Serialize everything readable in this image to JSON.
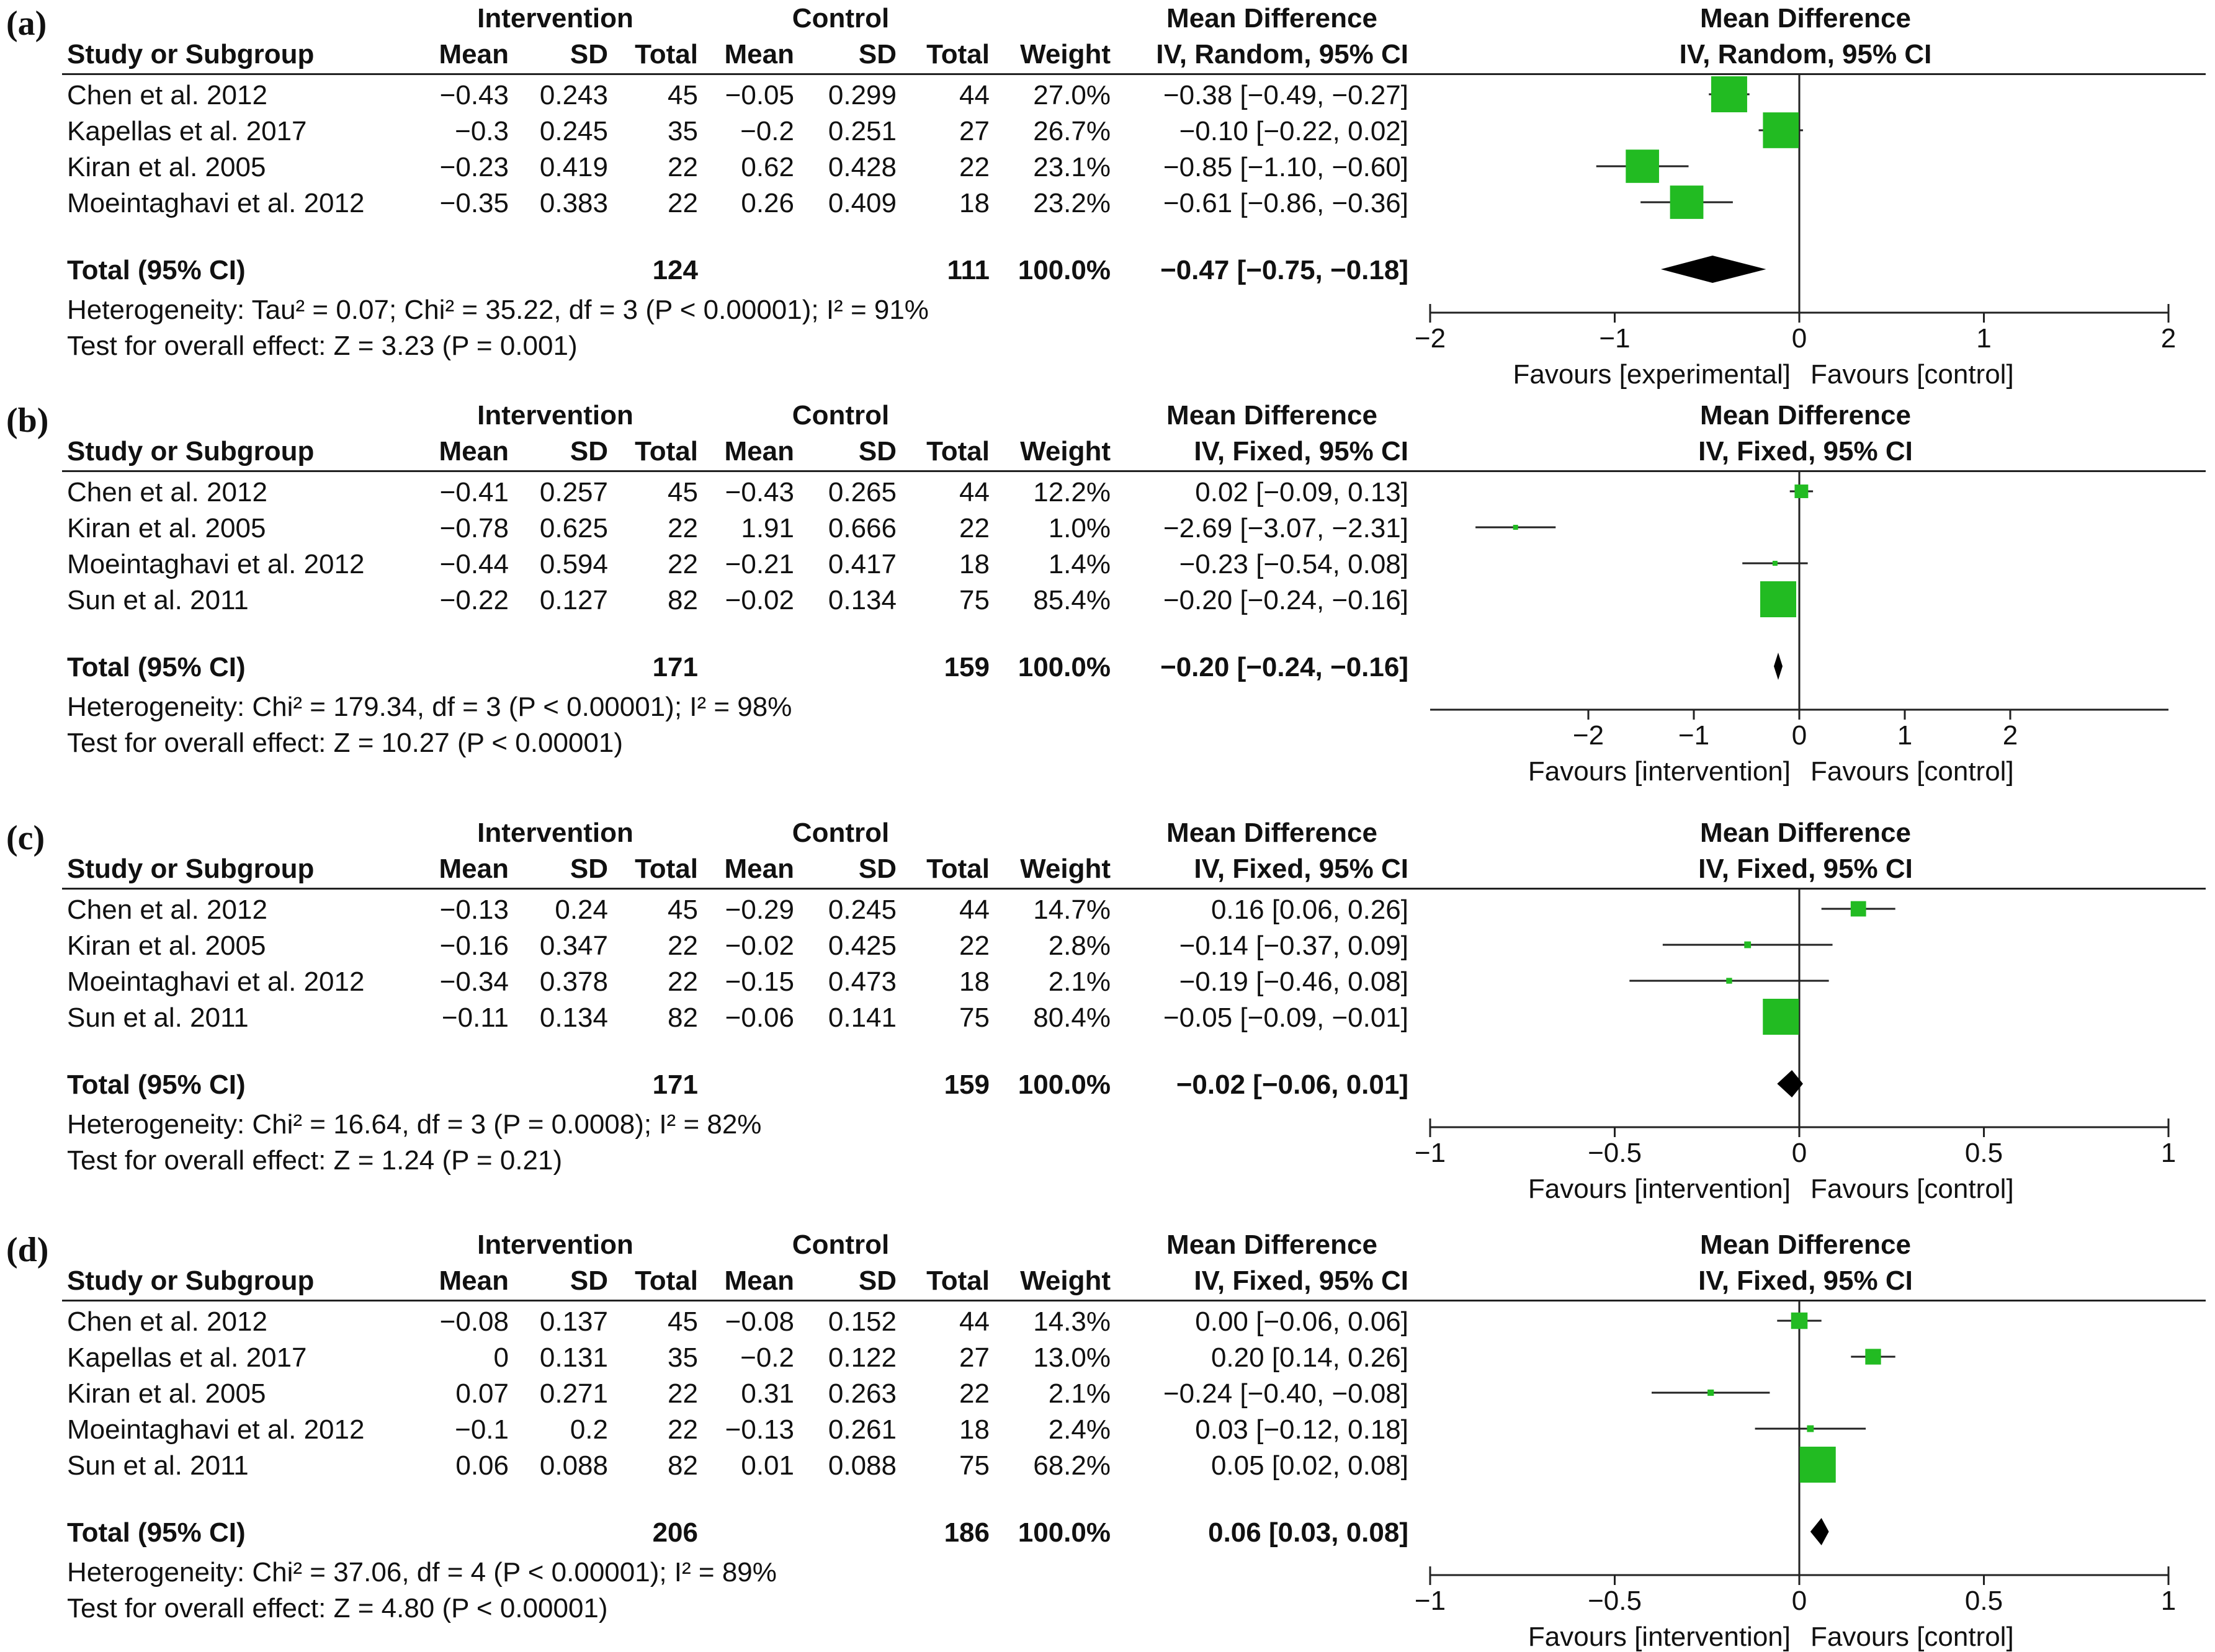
{
  "headers": {
    "study": "Study or Subgroup",
    "intervention": "Intervention",
    "control": "Control",
    "mean": "Mean",
    "sd": "SD",
    "total": "Total",
    "weight": "Weight",
    "md": "Mean Difference",
    "total_ci": "Total (95% CI)"
  },
  "colors": {
    "study_square": "#22bb22",
    "diamond": "#000000",
    "lines": "#222222"
  },
  "chart_data": [
    {
      "type": "forest",
      "panel_label": "(a)",
      "method": "IV, Random, 95% CI",
      "xlim": [
        -2,
        2
      ],
      "ticks": [
        "−2",
        "−1",
        "0",
        "1",
        "2"
      ],
      "tick_values": [
        -2,
        -1,
        0,
        1,
        2
      ],
      "favours_left": "Favours [experimental]",
      "favours_right": "Favours [control]",
      "studies": [
        {
          "name": "Chen et al. 2012",
          "i_mean": "−0.43",
          "i_sd": "0.243",
          "i_total": "45",
          "c_mean": "−0.05",
          "c_sd": "0.299",
          "c_total": "44",
          "weight": "27.0%",
          "ci_text": "−0.38 [−0.49, −0.27]",
          "md": -0.38,
          "lo": -0.49,
          "hi": -0.27,
          "w": 27.0
        },
        {
          "name": "Kapellas et al. 2017",
          "i_mean": "−0.3",
          "i_sd": "0.245",
          "i_total": "35",
          "c_mean": "−0.2",
          "c_sd": "0.251",
          "c_total": "27",
          "weight": "26.7%",
          "ci_text": "−0.10 [−0.22, 0.02]",
          "md": -0.1,
          "lo": -0.22,
          "hi": 0.02,
          "w": 26.7
        },
        {
          "name": "Kiran et al. 2005",
          "i_mean": "−0.23",
          "i_sd": "0.419",
          "i_total": "22",
          "c_mean": "0.62",
          "c_sd": "0.428",
          "c_total": "22",
          "weight": "23.1%",
          "ci_text": "−0.85 [−1.10, −0.60]",
          "md": -0.85,
          "lo": -1.1,
          "hi": -0.6,
          "w": 23.1
        },
        {
          "name": "Moeintaghavi et al. 2012",
          "i_mean": "−0.35",
          "i_sd": "0.383",
          "i_total": "22",
          "c_mean": "0.26",
          "c_sd": "0.409",
          "c_total": "18",
          "weight": "23.2%",
          "ci_text": "−0.61 [−0.86, −0.36]",
          "md": -0.61,
          "lo": -0.86,
          "hi": -0.36,
          "w": 23.2
        }
      ],
      "total": {
        "i_total": "124",
        "c_total": "111",
        "weight": "100.0%",
        "ci_text": "−0.47 [−0.75, −0.18]",
        "md": -0.47,
        "lo": -0.75,
        "hi": -0.18
      },
      "heterogeneity": "Heterogeneity: Tau² = 0.07; Chi² = 35.22, df = 3 (P < 0.00001); I² = 91%",
      "overall": "Test for overall effect: Z = 3.23 (P = 0.001)"
    },
    {
      "type": "forest",
      "panel_label": "(b)",
      "method": "IV, Fixed, 95% CI",
      "xlim": [
        -3.5,
        3.5
      ],
      "ticks": [
        "−2",
        "−1",
        "0",
        "1",
        "2"
      ],
      "tick_values": [
        -2,
        -1,
        0,
        1,
        2
      ],
      "favours_left": "Favours [intervention]",
      "favours_right": "Favours [control]",
      "studies": [
        {
          "name": "Chen et al. 2012",
          "i_mean": "−0.41",
          "i_sd": "0.257",
          "i_total": "45",
          "c_mean": "−0.43",
          "c_sd": "0.265",
          "c_total": "44",
          "weight": "12.2%",
          "ci_text": "0.02 [−0.09, 0.13]",
          "md": 0.02,
          "lo": -0.09,
          "hi": 0.13,
          "w": 12.2
        },
        {
          "name": "Kiran et al. 2005",
          "i_mean": "−0.78",
          "i_sd": "0.625",
          "i_total": "22",
          "c_mean": "1.91",
          "c_sd": "0.666",
          "c_total": "22",
          "weight": "1.0%",
          "ci_text": "−2.69 [−3.07, −2.31]",
          "md": -2.69,
          "lo": -3.07,
          "hi": -2.31,
          "w": 1.0
        },
        {
          "name": "Moeintaghavi et al. 2012",
          "i_mean": "−0.44",
          "i_sd": "0.594",
          "i_total": "22",
          "c_mean": "−0.21",
          "c_sd": "0.417",
          "c_total": "18",
          "weight": "1.4%",
          "ci_text": "−0.23 [−0.54, 0.08]",
          "md": -0.23,
          "lo": -0.54,
          "hi": 0.08,
          "w": 1.4
        },
        {
          "name": "Sun et al. 2011",
          "i_mean": "−0.22",
          "i_sd": "0.127",
          "i_total": "82",
          "c_mean": "−0.02",
          "c_sd": "0.134",
          "c_total": "75",
          "weight": "85.4%",
          "ci_text": "−0.20 [−0.24, −0.16]",
          "md": -0.2,
          "lo": -0.24,
          "hi": -0.16,
          "w": 85.4
        }
      ],
      "total": {
        "i_total": "171",
        "c_total": "159",
        "weight": "100.0%",
        "ci_text": "−0.20 [−0.24, −0.16]",
        "md": -0.2,
        "lo": -0.24,
        "hi": -0.16
      },
      "heterogeneity": "Heterogeneity: Chi² = 179.34, df = 3 (P < 0.00001); I² = 98%",
      "overall": "Test for overall effect: Z = 10.27 (P < 0.00001)"
    },
    {
      "type": "forest",
      "panel_label": "(c)",
      "method": "IV, Fixed, 95% CI",
      "xlim": [
        -1,
        1
      ],
      "ticks": [
        "−1",
        "−0.5",
        "0",
        "0.5",
        "1"
      ],
      "tick_values": [
        -1,
        -0.5,
        0,
        0.5,
        1
      ],
      "favours_left": "Favours [intervention]",
      "favours_right": "Favours [control]",
      "studies": [
        {
          "name": "Chen et al. 2012",
          "i_mean": "−0.13",
          "i_sd": "0.24",
          "i_total": "45",
          "c_mean": "−0.29",
          "c_sd": "0.245",
          "c_total": "44",
          "weight": "14.7%",
          "ci_text": "0.16 [0.06, 0.26]",
          "md": 0.16,
          "lo": 0.06,
          "hi": 0.26,
          "w": 14.7
        },
        {
          "name": "Kiran et al. 2005",
          "i_mean": "−0.16",
          "i_sd": "0.347",
          "i_total": "22",
          "c_mean": "−0.02",
          "c_sd": "0.425",
          "c_total": "22",
          "weight": "2.8%",
          "ci_text": "−0.14 [−0.37, 0.09]",
          "md": -0.14,
          "lo": -0.37,
          "hi": 0.09,
          "w": 2.8
        },
        {
          "name": "Moeintaghavi et al. 2012",
          "i_mean": "−0.34",
          "i_sd": "0.378",
          "i_total": "22",
          "c_mean": "−0.15",
          "c_sd": "0.473",
          "c_total": "18",
          "weight": "2.1%",
          "ci_text": "−0.19 [−0.46, 0.08]",
          "md": -0.19,
          "lo": -0.46,
          "hi": 0.08,
          "w": 2.1
        },
        {
          "name": "Sun et al. 2011",
          "i_mean": "−0.11",
          "i_sd": "0.134",
          "i_total": "82",
          "c_mean": "−0.06",
          "c_sd": "0.141",
          "c_total": "75",
          "weight": "80.4%",
          "ci_text": "−0.05 [−0.09, −0.01]",
          "md": -0.05,
          "lo": -0.09,
          "hi": -0.01,
          "w": 80.4
        }
      ],
      "total": {
        "i_total": "171",
        "c_total": "159",
        "weight": "100.0%",
        "ci_text": "−0.02 [−0.06, 0.01]",
        "md": -0.02,
        "lo": -0.06,
        "hi": 0.01
      },
      "heterogeneity": "Heterogeneity: Chi² = 16.64, df = 3 (P = 0.0008); I² = 82%",
      "overall": "Test for overall effect: Z = 1.24 (P = 0.21)"
    },
    {
      "type": "forest",
      "panel_label": "(d)",
      "method": "IV, Fixed, 95% CI",
      "xlim": [
        -1,
        1
      ],
      "ticks": [
        "−1",
        "−0.5",
        "0",
        "0.5",
        "1"
      ],
      "tick_values": [
        -1,
        -0.5,
        0,
        0.5,
        1
      ],
      "favours_left": "Favours [intervention]",
      "favours_right": "Favours [control]",
      "studies": [
        {
          "name": "Chen et al. 2012",
          "i_mean": "−0.08",
          "i_sd": "0.137",
          "i_total": "45",
          "c_mean": "−0.08",
          "c_sd": "0.152",
          "c_total": "44",
          "weight": "14.3%",
          "ci_text": "0.00 [−0.06, 0.06]",
          "md": 0.0,
          "lo": -0.06,
          "hi": 0.06,
          "w": 14.3
        },
        {
          "name": "Kapellas et al. 2017",
          "i_mean": "0",
          "i_sd": "0.131",
          "i_total": "35",
          "c_mean": "−0.2",
          "c_sd": "0.122",
          "c_total": "27",
          "weight": "13.0%",
          "ci_text": "0.20 [0.14, 0.26]",
          "md": 0.2,
          "lo": 0.14,
          "hi": 0.26,
          "w": 13.0
        },
        {
          "name": "Kiran et al. 2005",
          "i_mean": "0.07",
          "i_sd": "0.271",
          "i_total": "22",
          "c_mean": "0.31",
          "c_sd": "0.263",
          "c_total": "22",
          "weight": "2.1%",
          "ci_text": "−0.24 [−0.40, −0.08]",
          "md": -0.24,
          "lo": -0.4,
          "hi": -0.08,
          "w": 2.1
        },
        {
          "name": "Moeintaghavi et al. 2012",
          "i_mean": "−0.1",
          "i_sd": "0.2",
          "i_total": "22",
          "c_mean": "−0.13",
          "c_sd": "0.261",
          "c_total": "18",
          "weight": "2.4%",
          "ci_text": "0.03 [−0.12, 0.18]",
          "md": 0.03,
          "lo": -0.12,
          "hi": 0.18,
          "w": 2.4
        },
        {
          "name": "Sun et al. 2011",
          "i_mean": "0.06",
          "i_sd": "0.088",
          "i_total": "82",
          "c_mean": "0.01",
          "c_sd": "0.088",
          "c_total": "75",
          "weight": "68.2%",
          "ci_text": "0.05 [0.02, 0.08]",
          "md": 0.05,
          "lo": 0.02,
          "hi": 0.08,
          "w": 68.2
        }
      ],
      "total": {
        "i_total": "206",
        "c_total": "186",
        "weight": "100.0%",
        "ci_text": "0.06 [0.03, 0.08]",
        "md": 0.06,
        "lo": 0.03,
        "hi": 0.08
      },
      "heterogeneity": "Heterogeneity: Chi² = 37.06, df = 4 (P < 0.00001); I² = 89%",
      "overall": "Test for overall effect: Z = 4.80 (P < 0.00001)"
    }
  ]
}
